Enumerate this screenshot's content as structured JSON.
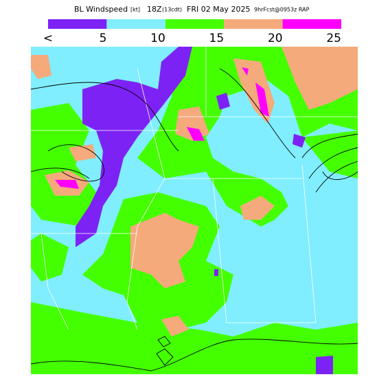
{
  "header": {
    "title": "BL Windspeed",
    "units": "[kt]",
    "time": "18Z",
    "local": "(13cdt)",
    "date": "FRI 02 May 2025",
    "run": "9hrFcst@0953z RAP"
  },
  "legend": {
    "labels": [
      "<",
      "5",
      "10",
      "15",
      "20",
      "25"
    ],
    "colors": [
      "#7d22f5",
      "#80eeff",
      "#44ff00",
      "#f5aa7c",
      "#ff00ff"
    ]
  }
}
